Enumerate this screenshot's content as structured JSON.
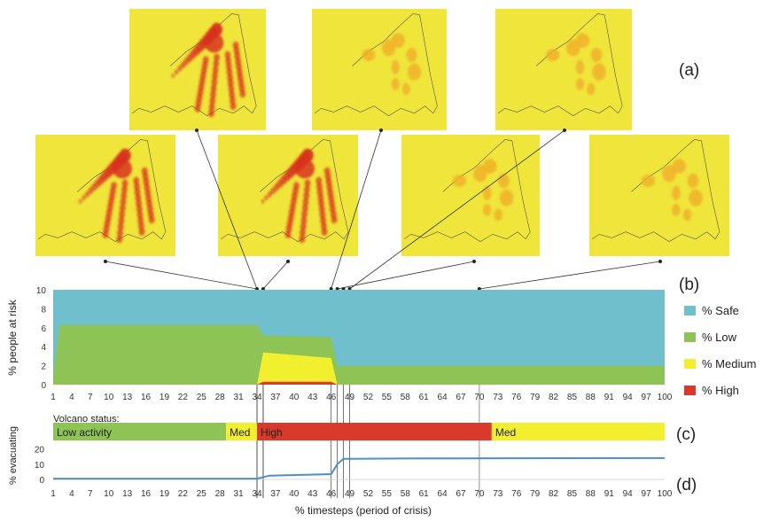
{
  "chart_data": {
    "type": "area",
    "panel_labels": [
      "(a)",
      "(b)",
      "(c)",
      "(d)"
    ],
    "x_ticks": [
      1,
      4,
      7,
      10,
      13,
      16,
      19,
      22,
      25,
      28,
      31,
      34,
      37,
      40,
      43,
      46,
      49,
      52,
      55,
      58,
      61,
      64,
      67,
      70,
      73,
      76,
      79,
      82,
      85,
      88,
      91,
      94,
      97,
      100
    ],
    "xlabel": "% timesteps (period of crisis)",
    "risk": {
      "ylabel": "% people at risk",
      "ylim": [
        0,
        10
      ],
      "y_ticks": [
        0,
        2,
        4,
        6,
        8,
        10
      ],
      "x": [
        1,
        2,
        34,
        35,
        46,
        47,
        100
      ],
      "series": [
        {
          "name": "% Safe",
          "color": "#6fbfcc",
          "values": [
            10,
            10,
            10,
            10,
            10,
            10,
            10
          ]
        },
        {
          "name": "% Low",
          "color": "#8dc455",
          "values": [
            0.8,
            6.3,
            6.3,
            5.2,
            5.0,
            2.0,
            2.0
          ]
        },
        {
          "name": "% Medium",
          "color": "#f2ef2e",
          "values": [
            0,
            0,
            0,
            3.4,
            2.8,
            0,
            0
          ]
        },
        {
          "name": "% High",
          "color": "#d93a2b",
          "values": [
            0,
            0,
            0,
            0.3,
            0.3,
            0,
            0
          ]
        }
      ]
    },
    "status": {
      "title": "Volcano status:",
      "segments": [
        {
          "label": "Low activity",
          "start": 1,
          "end": 29,
          "color": "#8dc455"
        },
        {
          "label": "Med",
          "start": 29,
          "end": 34,
          "color": "#f2ef2e"
        },
        {
          "label": "High",
          "start": 34,
          "end": 72,
          "color": "#d93a2b"
        },
        {
          "label": "Med",
          "start": 72,
          "end": 100,
          "color": "#f2ef2e"
        }
      ]
    },
    "evacuating": {
      "ylabel": "% evacuating",
      "ylim": [
        0,
        25
      ],
      "y_ticks": [
        0,
        10,
        20
      ],
      "color": "#4f8fbf",
      "x": [
        1,
        34,
        35,
        36,
        46,
        47,
        48,
        60,
        100
      ],
      "y": [
        0.5,
        0.5,
        1.5,
        2.5,
        3.5,
        10,
        13.5,
        13.8,
        14
      ]
    },
    "markers": [
      34,
      35,
      46,
      47,
      48,
      49,
      70
    ]
  },
  "colors": {
    "map_background": "#efe53b",
    "plume_high": "#d8341c",
    "plume_medium": "#f0b12a",
    "boundary": "#555555"
  }
}
